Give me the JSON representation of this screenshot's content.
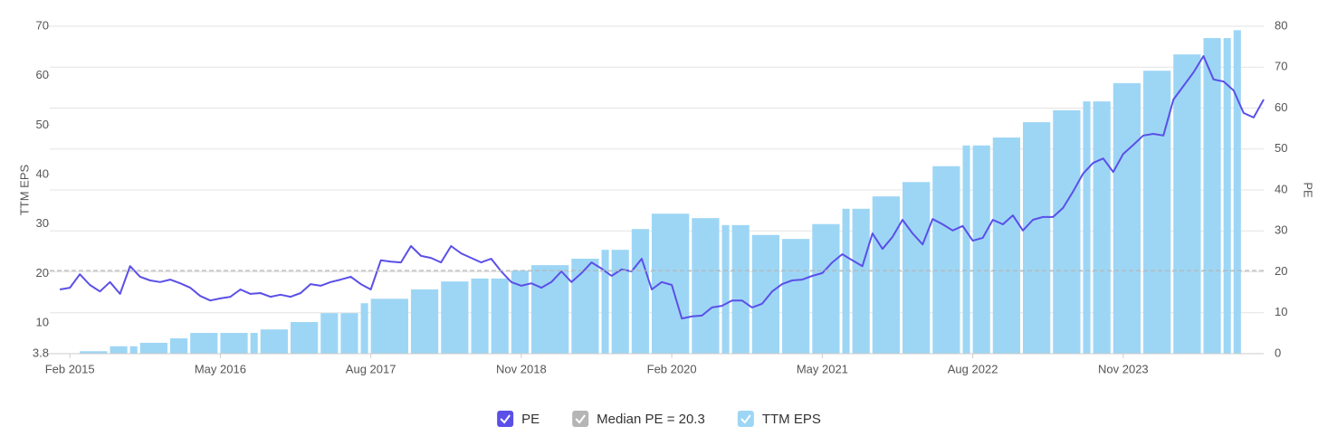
{
  "chart_data": {
    "type": "combo",
    "xlim": [
      "2014-12",
      "2025-01"
    ],
    "xticks": [
      {
        "value": "2015-02",
        "label": "Feb 2015"
      },
      {
        "value": "2016-05",
        "label": "May 2016"
      },
      {
        "value": "2017-08",
        "label": "Aug 2017"
      },
      {
        "value": "2018-11",
        "label": "Nov 2018"
      },
      {
        "value": "2020-02",
        "label": "Feb 2020"
      },
      {
        "value": "2021-05",
        "label": "May 2021"
      },
      {
        "value": "2022-08",
        "label": "Aug 2022"
      },
      {
        "value": "2023-11",
        "label": "Nov 2023"
      }
    ],
    "y_label": "TTM EPS",
    "ylim": [
      3.8,
      70
    ],
    "yticks": [
      3.8,
      10,
      20,
      30,
      40,
      50,
      60,
      70
    ],
    "y2_label": "PE",
    "y2lim": [
      0,
      80
    ],
    "y2ticks": [
      0,
      10,
      20,
      30,
      40,
      50,
      60,
      70,
      80
    ],
    "grid": true,
    "legend": "bottom",
    "series": [
      {
        "name": "PE",
        "type": "line",
        "axis": "y2",
        "color": "#5b4fe8",
        "x": [
          "2015-01",
          "2015-02",
          "2015-03",
          "2015-04",
          "2015-05",
          "2015-06",
          "2015-07",
          "2015-08",
          "2015-09",
          "2015-10",
          "2015-11",
          "2015-12",
          "2016-01",
          "2016-02",
          "2016-03",
          "2016-04",
          "2016-05",
          "2016-06",
          "2016-07",
          "2016-08",
          "2016-09",
          "2016-10",
          "2016-11",
          "2016-12",
          "2017-01",
          "2017-02",
          "2017-03",
          "2017-04",
          "2017-05",
          "2017-06",
          "2017-07",
          "2017-08",
          "2017-09",
          "2017-10",
          "2017-11",
          "2017-12",
          "2018-01",
          "2018-02",
          "2018-03",
          "2018-04",
          "2018-05",
          "2018-06",
          "2018-07",
          "2018-08",
          "2018-09",
          "2018-10",
          "2018-11",
          "2018-12",
          "2019-01",
          "2019-02",
          "2019-03",
          "2019-04",
          "2019-05",
          "2019-06",
          "2019-07",
          "2019-08",
          "2019-09",
          "2019-10",
          "2019-11",
          "2019-12",
          "2020-01",
          "2020-02",
          "2020-03",
          "2020-04",
          "2020-05",
          "2020-06",
          "2020-07",
          "2020-08",
          "2020-09",
          "2020-10",
          "2020-11",
          "2020-12",
          "2021-01",
          "2021-02",
          "2021-03",
          "2021-04",
          "2021-05",
          "2021-06",
          "2021-07",
          "2021-08",
          "2021-09",
          "2021-10",
          "2021-11",
          "2021-12",
          "2022-01",
          "2022-02",
          "2022-03",
          "2022-04",
          "2022-05",
          "2022-06",
          "2022-07",
          "2022-08",
          "2022-09",
          "2022-10",
          "2022-11",
          "2022-12",
          "2023-01",
          "2023-02",
          "2023-03",
          "2023-04",
          "2023-05",
          "2023-06",
          "2023-07",
          "2023-08",
          "2023-09",
          "2023-10",
          "2023-11",
          "2023-12",
          "2024-01",
          "2024-02",
          "2024-03",
          "2024-04",
          "2024-05",
          "2024-06",
          "2024-07",
          "2024-08",
          "2024-09",
          "2024-10",
          "2024-11",
          "2024-12",
          "2025-01"
        ],
        "values": [
          15.7,
          16.1,
          19.4,
          16.8,
          15.2,
          17.5,
          14.6,
          21.4,
          18.8,
          17.9,
          17.5,
          18.1,
          17.2,
          16.1,
          14.1,
          13.0,
          13.5,
          13.9,
          15.7,
          14.6,
          14.8,
          13.9,
          14.4,
          13.9,
          14.8,
          17.0,
          16.6,
          17.5,
          18.1,
          18.8,
          17.0,
          15.7,
          22.8,
          22.5,
          22.3,
          26.3,
          23.9,
          23.4,
          22.3,
          26.3,
          24.5,
          23.4,
          22.3,
          23.2,
          20.1,
          17.5,
          16.6,
          17.2,
          16.1,
          17.5,
          20.1,
          17.5,
          19.7,
          22.3,
          20.8,
          19.0,
          20.6,
          20.1,
          23.2,
          15.7,
          17.5,
          16.8,
          8.6,
          9.1,
          9.3,
          11.3,
          11.7,
          13.0,
          13.0,
          11.3,
          12.2,
          15.2,
          17.0,
          17.9,
          18.1,
          19.0,
          19.7,
          22.3,
          24.3,
          22.8,
          21.4,
          29.4,
          25.6,
          28.5,
          32.7,
          29.4,
          26.7,
          32.9,
          31.6,
          30.1,
          31.2,
          27.6,
          28.3,
          32.7,
          31.6,
          33.8,
          30.1,
          32.7,
          33.4,
          33.4,
          35.6,
          39.6,
          44.0,
          46.6,
          47.7,
          44.4,
          48.8,
          51.0,
          53.3,
          53.7,
          53.3,
          62.1,
          65.4,
          68.7,
          72.7,
          67.0,
          66.5,
          64.3,
          58.8,
          57.7,
          62.1
        ]
      },
      {
        "name": "TTM EPS",
        "type": "bar",
        "axis": "y",
        "color": "#9dd6f5",
        "x": [
          "2015-03",
          "2015-06",
          "2015-08",
          "2015-09",
          "2015-12",
          "2016-02",
          "2016-05",
          "2016-08",
          "2016-09",
          "2016-12",
          "2017-03",
          "2017-05",
          "2017-07",
          "2017-08",
          "2017-12",
          "2018-03",
          "2018-06",
          "2018-08",
          "2018-10",
          "2018-12",
          "2019-04",
          "2019-07",
          "2019-08",
          "2019-10",
          "2019-12",
          "2020-04",
          "2020-07",
          "2020-08",
          "2020-10",
          "2021-01",
          "2021-04",
          "2021-07",
          "2021-08",
          "2021-10",
          "2022-01",
          "2022-04",
          "2022-07",
          "2022-08",
          "2022-10",
          "2023-01",
          "2023-04",
          "2023-07",
          "2023-08",
          "2023-10",
          "2024-01",
          "2024-04",
          "2024-07",
          "2024-09",
          "2024-10"
        ],
        "values": [
          4.3,
          5.3,
          5.3,
          6.0,
          6.9,
          8.0,
          8.0,
          8.0,
          8.7,
          10.2,
          12.0,
          12.0,
          14.0,
          14.9,
          16.8,
          18.4,
          19.0,
          19.0,
          20.6,
          21.7,
          23.0,
          24.8,
          24.8,
          29.0,
          32.1,
          31.2,
          29.8,
          29.8,
          27.8,
          27.0,
          30.0,
          33.1,
          33.1,
          35.6,
          38.5,
          41.7,
          45.9,
          45.9,
          47.5,
          50.6,
          53.0,
          54.8,
          54.8,
          58.5,
          61.0,
          64.3,
          67.6,
          67.6,
          69.2
        ]
      }
    ],
    "reference_lines": [
      {
        "name": "Median PE = 20.3",
        "value": 20.3,
        "axis": "y2",
        "color": "#b5b5b5"
      }
    ]
  }
}
